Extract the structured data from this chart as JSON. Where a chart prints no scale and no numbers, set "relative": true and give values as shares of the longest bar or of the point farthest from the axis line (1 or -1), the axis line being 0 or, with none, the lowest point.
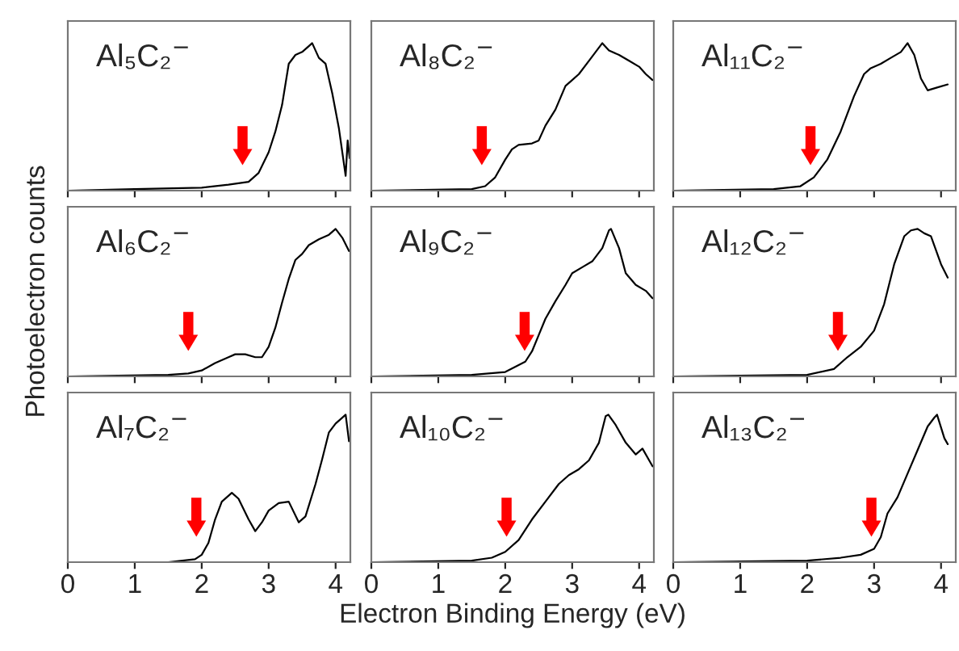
{
  "chart_data": [
    {
      "type": "line",
      "title": "Al₅C₂$^{−}$",
      "relative": true,
      "xlim": [
        0,
        4.22
      ],
      "xticks": [
        0,
        1,
        2,
        3,
        4
      ],
      "tick_labels": false,
      "x": [
        0,
        1.0,
        2.0,
        2.4,
        2.7,
        2.85,
        3.0,
        3.1,
        3.2,
        3.3,
        3.4,
        3.5,
        3.6,
        3.65,
        3.75,
        3.85,
        3.95,
        4.05,
        4.1,
        4.15,
        4.18,
        4.21
      ],
      "series": [
        {
          "color": "#000000",
          "values": [
            0,
            0.01,
            0.02,
            0.04,
            0.06,
            0.12,
            0.26,
            0.4,
            0.58,
            0.86,
            0.92,
            0.94,
            0.98,
            1.0,
            0.9,
            0.86,
            0.66,
            0.42,
            0.26,
            0.1,
            0.34,
            0.22
          ]
        }
      ],
      "ref_lines": [
        {
          "axis": "x",
          "value": 2.61,
          "color": "#ff0000"
        }
      ]
    },
    {
      "type": "line",
      "title": "Al₈C₂$^{−}$",
      "relative": true,
      "xlim": [
        0,
        4.22
      ],
      "xticks": [
        0,
        1,
        2,
        3,
        4
      ],
      "tick_labels": false,
      "x": [
        0,
        1.5,
        1.7,
        1.85,
        2.0,
        2.1,
        2.2,
        2.4,
        2.5,
        2.6,
        2.75,
        2.9,
        3.0,
        3.1,
        3.25,
        3.35,
        3.45,
        3.55,
        3.7,
        3.85,
        4.0,
        4.1,
        4.2
      ],
      "series": [
        {
          "color": "#000000",
          "values": [
            0,
            0.01,
            0.03,
            0.09,
            0.21,
            0.28,
            0.31,
            0.32,
            0.34,
            0.44,
            0.55,
            0.71,
            0.75,
            0.79,
            0.88,
            0.94,
            1.0,
            0.95,
            0.92,
            0.88,
            0.84,
            0.79,
            0.75
          ]
        }
      ],
      "ref_lines": [
        {
          "axis": "x",
          "value": 1.65,
          "color": "#ff0000"
        }
      ]
    },
    {
      "type": "line",
      "title": "Al₁₁C₂$^{−}$",
      "relative": true,
      "xlim": [
        0,
        4.22
      ],
      "xticks": [
        0,
        1,
        2,
        3,
        4
      ],
      "tick_labels": false,
      "x": [
        0,
        1.5,
        1.9,
        2.1,
        2.3,
        2.5,
        2.7,
        2.85,
        2.95,
        3.1,
        3.25,
        3.4,
        3.5,
        3.6,
        3.7,
        3.8,
        3.95,
        4.1
      ],
      "series": [
        {
          "color": "#000000",
          "values": [
            0,
            0.01,
            0.03,
            0.09,
            0.21,
            0.4,
            0.64,
            0.79,
            0.83,
            0.86,
            0.9,
            0.94,
            1.0,
            0.92,
            0.76,
            0.68,
            0.7,
            0.72
          ]
        }
      ],
      "ref_lines": [
        {
          "axis": "x",
          "value": 2.05,
          "color": "#ff0000"
        }
      ]
    },
    {
      "type": "line",
      "title": "Al₆C₂$^{−}$",
      "ylabel": "Photoelectron counts",
      "relative": true,
      "xlim": [
        0,
        4.22
      ],
      "xticks": [
        0,
        1,
        2,
        3,
        4
      ],
      "tick_labels": false,
      "x": [
        0,
        1.5,
        1.8,
        2.0,
        2.2,
        2.4,
        2.5,
        2.65,
        2.8,
        2.9,
        3.0,
        3.1,
        3.2,
        3.3,
        3.4,
        3.5,
        3.6,
        3.75,
        3.9,
        4.0,
        4.1,
        4.2
      ],
      "series": [
        {
          "color": "#000000",
          "values": [
            0,
            0.01,
            0.02,
            0.04,
            0.09,
            0.13,
            0.15,
            0.15,
            0.13,
            0.13,
            0.2,
            0.33,
            0.5,
            0.66,
            0.79,
            0.83,
            0.89,
            0.93,
            0.96,
            1.0,
            0.94,
            0.85
          ]
        }
      ],
      "ref_lines": [
        {
          "axis": "x",
          "value": 1.8,
          "color": "#ff0000"
        }
      ]
    },
    {
      "type": "line",
      "title": "Al₉C₂$^{−}$",
      "relative": true,
      "xlim": [
        0,
        4.22
      ],
      "xticks": [
        0,
        1,
        2,
        3,
        4
      ],
      "tick_labels": false,
      "x": [
        0,
        1.5,
        2.0,
        2.3,
        2.4,
        2.5,
        2.6,
        2.75,
        2.9,
        3.0,
        3.15,
        3.3,
        3.45,
        3.55,
        3.58,
        3.7,
        3.8,
        3.95,
        4.1,
        4.2
      ],
      "series": [
        {
          "color": "#000000",
          "values": [
            0,
            0.01,
            0.03,
            0.1,
            0.17,
            0.28,
            0.39,
            0.51,
            0.62,
            0.7,
            0.74,
            0.78,
            0.87,
            0.99,
            1.0,
            0.87,
            0.7,
            0.62,
            0.58,
            0.53
          ]
        }
      ],
      "ref_lines": [
        {
          "axis": "x",
          "value": 2.29,
          "color": "#ff0000"
        }
      ]
    },
    {
      "type": "line",
      "title": "Al₁₂C₂$^{−}$",
      "relative": true,
      "xlim": [
        0,
        4.22
      ],
      "xticks": [
        0,
        1,
        2,
        3,
        4
      ],
      "tick_labels": false,
      "x": [
        0,
        2.0,
        2.4,
        2.6,
        2.8,
        3.0,
        3.15,
        3.3,
        3.45,
        3.55,
        3.65,
        3.75,
        3.85,
        4.0,
        4.1
      ],
      "series": [
        {
          "color": "#000000",
          "values": [
            0,
            0.01,
            0.05,
            0.13,
            0.2,
            0.31,
            0.49,
            0.76,
            0.95,
            0.99,
            1.0,
            0.97,
            0.95,
            0.76,
            0.67
          ]
        }
      ],
      "ref_lines": [
        {
          "axis": "x",
          "value": 2.46,
          "color": "#ff0000"
        }
      ]
    },
    {
      "type": "line",
      "title": "Al₇C₂$^{−}$",
      "relative": true,
      "xlim": [
        0,
        4.22
      ],
      "xticks": [
        0,
        1,
        2,
        3,
        4
      ],
      "tick_labels": "x",
      "x": [
        0,
        1.5,
        1.9,
        2.0,
        2.1,
        2.2,
        2.3,
        2.45,
        2.55,
        2.7,
        2.8,
        2.9,
        3.0,
        3.15,
        3.3,
        3.45,
        3.55,
        3.7,
        3.8,
        3.9,
        4.0,
        4.1,
        4.15,
        4.2
      ],
      "series": [
        {
          "color": "#000000",
          "values": [
            0,
            0.0,
            0.02,
            0.05,
            0.13,
            0.29,
            0.41,
            0.47,
            0.43,
            0.29,
            0.21,
            0.27,
            0.35,
            0.4,
            0.41,
            0.27,
            0.31,
            0.53,
            0.7,
            0.88,
            0.94,
            0.98,
            1.0,
            0.82
          ]
        }
      ],
      "ref_lines": [
        {
          "axis": "x",
          "value": 1.92,
          "color": "#ff0000"
        }
      ]
    },
    {
      "type": "line",
      "title": "Al₁₀C₂$^{−}$",
      "xlabel": "Electron Binding Energy (eV)",
      "relative": true,
      "xlim": [
        0,
        4.22
      ],
      "xticks": [
        0,
        1,
        2,
        3,
        4
      ],
      "tick_labels": "x",
      "x": [
        0,
        1.5,
        1.8,
        2.0,
        2.2,
        2.4,
        2.6,
        2.8,
        2.95,
        3.1,
        3.25,
        3.4,
        3.5,
        3.54,
        3.65,
        3.8,
        3.95,
        4.05,
        4.15,
        4.2
      ],
      "series": [
        {
          "color": "#000000",
          "values": [
            0,
            0.01,
            0.03,
            0.07,
            0.15,
            0.29,
            0.41,
            0.53,
            0.59,
            0.63,
            0.69,
            0.81,
            0.99,
            1.0,
            0.93,
            0.81,
            0.73,
            0.77,
            0.69,
            0.65
          ]
        }
      ],
      "ref_lines": [
        {
          "axis": "x",
          "value": 2.02,
          "color": "#ff0000"
        }
      ]
    },
    {
      "type": "line",
      "title": "Al₁₃C₂$^{−}$",
      "relative": true,
      "xlim": [
        0,
        4.22
      ],
      "xticks": [
        0,
        1,
        2,
        3,
        4
      ],
      "tick_labels": "x",
      "x": [
        0,
        2.0,
        2.5,
        2.8,
        3.0,
        3.1,
        3.2,
        3.35,
        3.5,
        3.65,
        3.8,
        3.9,
        3.94,
        4.05,
        4.1
      ],
      "series": [
        {
          "color": "#000000",
          "values": [
            0,
            0.01,
            0.03,
            0.05,
            0.09,
            0.17,
            0.33,
            0.44,
            0.6,
            0.76,
            0.92,
            0.98,
            1.0,
            0.84,
            0.8
          ]
        }
      ],
      "ref_lines": [
        {
          "axis": "x",
          "value": 2.96,
          "color": "#ff0000"
        }
      ]
    }
  ]
}
